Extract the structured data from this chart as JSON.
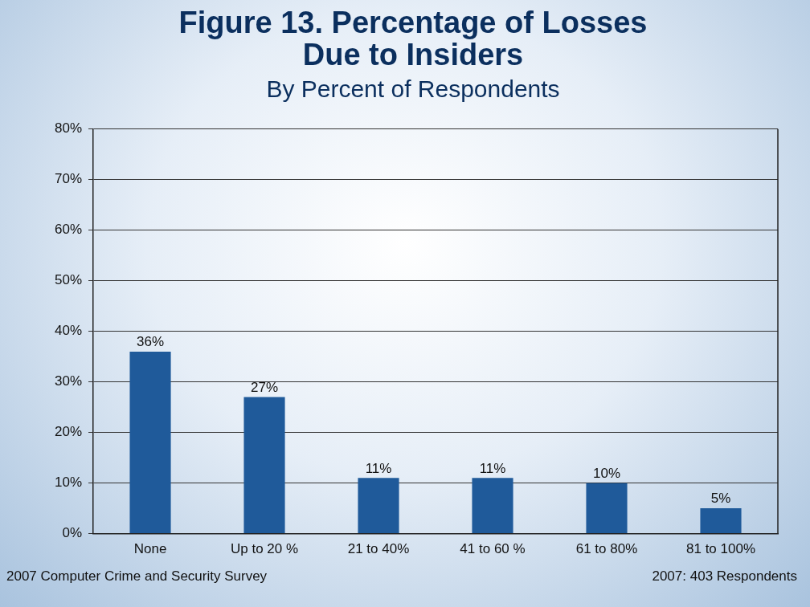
{
  "chart_data": {
    "type": "bar",
    "title": [
      "Figure 13. Percentage of Losses",
      "Due to Insiders"
    ],
    "subtitle": "By Percent of Respondents",
    "categories": [
      "None",
      "Up to 20 %",
      "21 to 40%",
      "41 to 60 %",
      "61 to 80%",
      "81 to 100%"
    ],
    "values": [
      36,
      27,
      11,
      11,
      10,
      5
    ],
    "color": "#1f5a9a",
    "value_labels": [
      "36%",
      "27%",
      "11%",
      "11%",
      "10%",
      "5%"
    ],
    "ylim": [
      0,
      80
    ],
    "yticks": [
      {
        "value": 0,
        "label": "0%"
      },
      {
        "value": 10,
        "label": "10%"
      },
      {
        "value": 20,
        "label": "20%"
      },
      {
        "value": 30,
        "label": "30%"
      },
      {
        "value": 40,
        "label": "40%"
      },
      {
        "value": 50,
        "label": "50%"
      },
      {
        "value": 60,
        "label": "60%"
      },
      {
        "value": 70,
        "label": "70%"
      },
      {
        "value": 80,
        "label": "80%"
      }
    ],
    "grid": "y",
    "legend": false,
    "annotations": [
      "2007 Computer Crime and Security Survey",
      "2007: 403 Respondents"
    ]
  }
}
